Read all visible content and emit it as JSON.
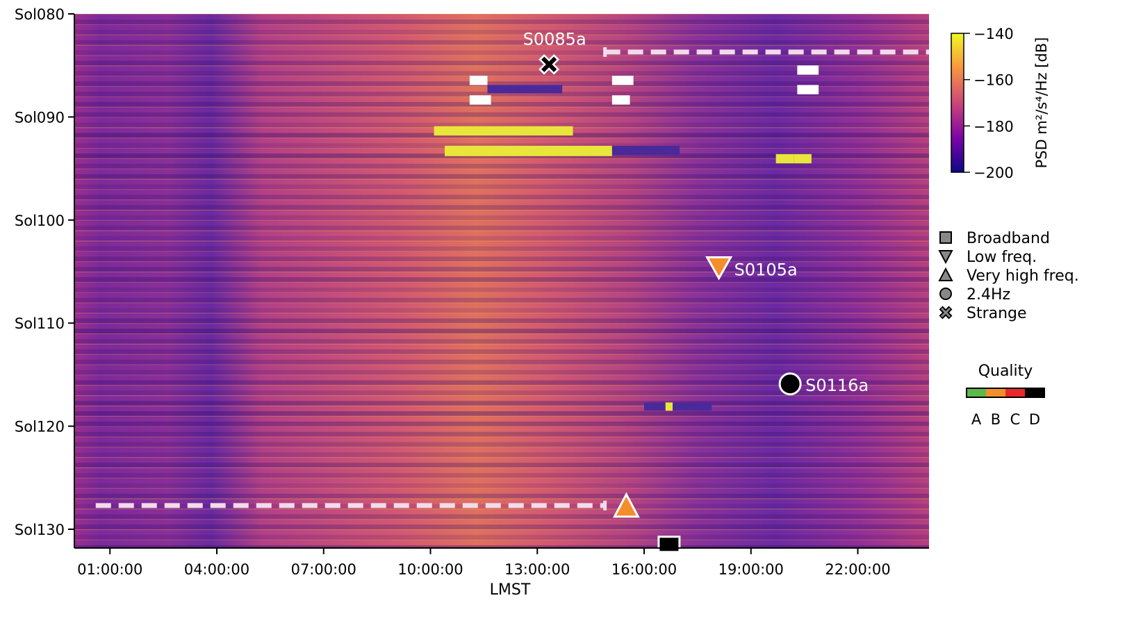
{
  "chart_data": {
    "type": "heatmap",
    "title": "",
    "xlabel": "LMST",
    "ylabel": "",
    "x_unit": "hours LMST",
    "xlim": [
      0,
      24
    ],
    "x_ticks": [
      1,
      4,
      7,
      10,
      13,
      16,
      19,
      22
    ],
    "x_tick_labels": [
      "01:00:00",
      "04:00:00",
      "07:00:00",
      "10:00:00",
      "13:00:00",
      "16:00:00",
      "19:00:00",
      "22:00:00"
    ],
    "y_unit": "sol",
    "ylim": [
      80,
      132
    ],
    "y_ticks": [
      80,
      90,
      100,
      110,
      120,
      130
    ],
    "y_tick_labels": [
      "Sol080",
      "Sol090",
      "Sol100",
      "Sol110",
      "Sol120",
      "Sol130"
    ],
    "colorbar": {
      "label": "PSD m²/s⁴/Hz [dB]",
      "range": [
        -200,
        -140
      ],
      "ticks": [
        -140,
        -160,
        -180,
        -200
      ],
      "tick_labels": [
        "−140",
        "−160",
        "−180",
        "−200"
      ],
      "colormap": "plasma"
    },
    "events": [
      {
        "name": "S0085a",
        "class": "Strange",
        "sol": 84.9,
        "lmst": 13.33
      },
      {
        "name": "S0105a",
        "class": "Low freq.",
        "sol": 104.7,
        "lmst": 18.1
      },
      {
        "name": "S0116a",
        "class": "2.4Hz",
        "sol": 115.9,
        "lmst": 20.1
      },
      {
        "name": "",
        "class": "Very high freq.",
        "sol": 127.7,
        "lmst": 15.5
      },
      {
        "name": "",
        "class": "Broadband",
        "sol": 131.4,
        "lmst": 16.7
      }
    ],
    "dashed_lines": [
      {
        "sol": 83.7,
        "lmst_start": 14.9,
        "lmst_end": 24.0
      },
      {
        "sol": 127.7,
        "lmst_start": 0.6,
        "lmst_end": 14.9
      }
    ],
    "legend": {
      "placement": "right",
      "entries": [
        {
          "label": "Broadband",
          "marker": "square"
        },
        {
          "label": "Low freq.",
          "marker": "triangle-down"
        },
        {
          "label": "Very high freq.",
          "marker": "triangle-up"
        },
        {
          "label": "2.4Hz",
          "marker": "circle"
        },
        {
          "label": "Strange",
          "marker": "cross"
        }
      ]
    },
    "quality": {
      "title": "Quality",
      "levels": [
        "A",
        "B",
        "C",
        "D"
      ],
      "colors": [
        "#5db94a",
        "#f28e2b",
        "#e8282b",
        "#000000"
      ]
    },
    "marker_colors": {
      "legend": "#888888",
      "event_orange": "#f28e2b",
      "event_black": "#000000"
    }
  }
}
